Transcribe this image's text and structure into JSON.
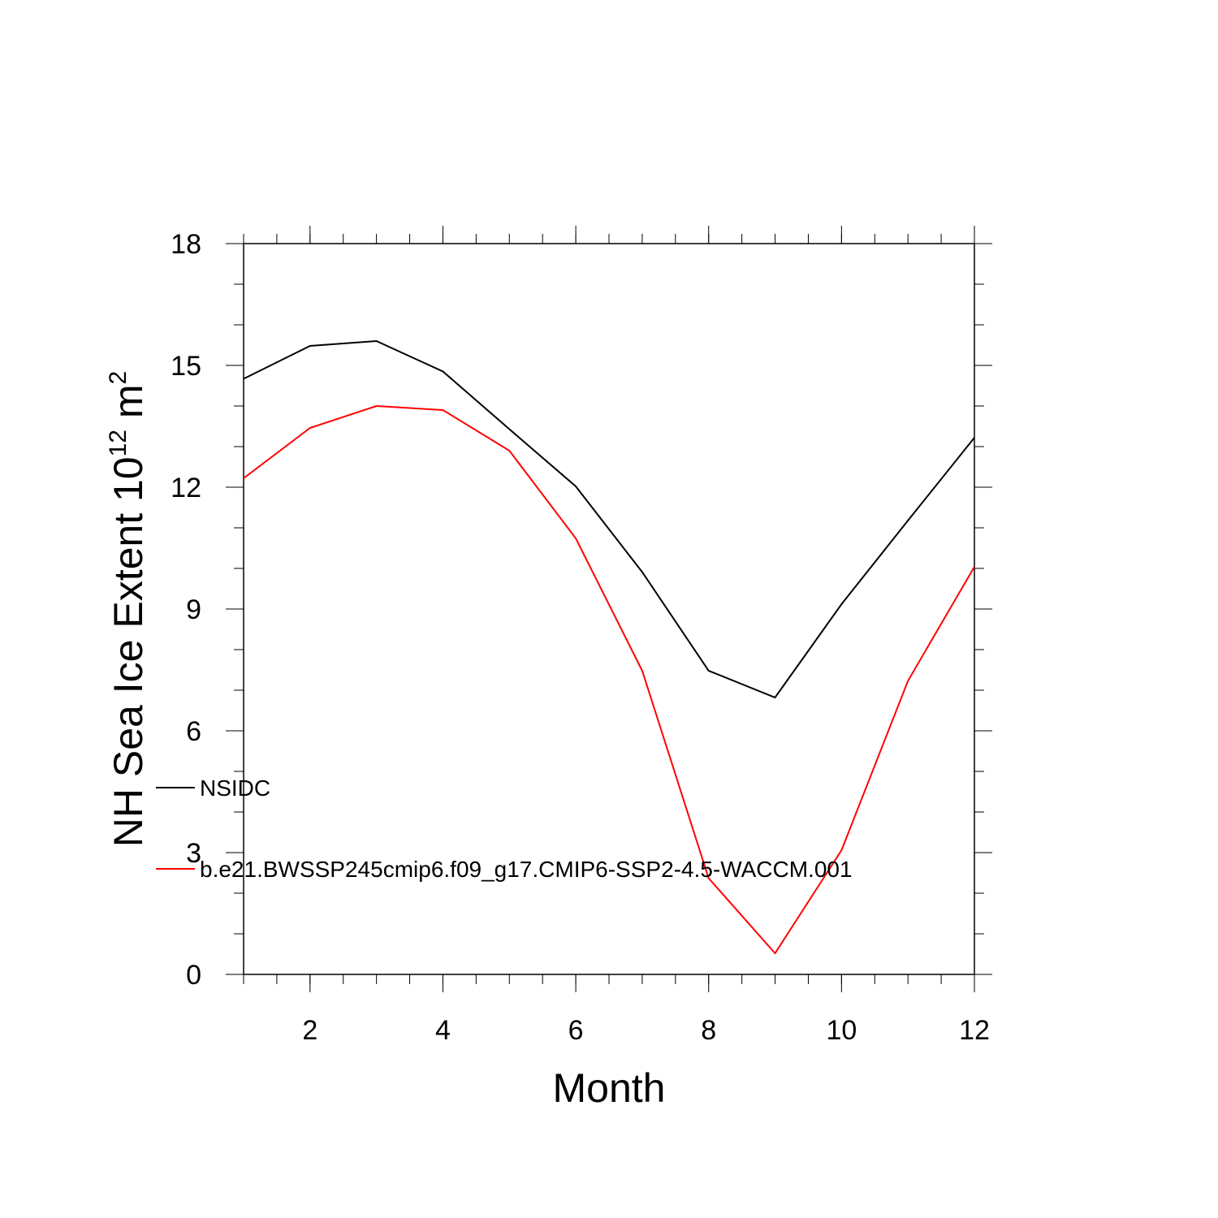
{
  "chart_data": {
    "type": "line",
    "title": "",
    "xlabel": "Month",
    "ylabel": "NH Sea Ice Extent 10",
    "ylabel_sup": "12",
    "ylabel_unit": " m",
    "ylabel_unit_sup": "2",
    "xlim": [
      1,
      12
    ],
    "ylim": [
      0,
      18
    ],
    "x_major_ticks": [
      2,
      4,
      6,
      8,
      10,
      12
    ],
    "y_major_ticks": [
      0,
      3,
      6,
      9,
      12,
      15,
      18
    ],
    "x": [
      1,
      2,
      3,
      4,
      5,
      6,
      7,
      8,
      9,
      10,
      11,
      12
    ],
    "series": [
      {
        "name": "NSIDC",
        "color": "#000000",
        "values": [
          14.67,
          15.48,
          15.6,
          14.85,
          13.43,
          12.02,
          9.91,
          7.48,
          6.82,
          9.12,
          11.18,
          13.22
        ]
      },
      {
        "name": "b.e21.BWSSP245cmip6.f09_g17.CMIP6-SSP2-4.5-WACCM.001",
        "color": "#ff0000",
        "values": [
          12.22,
          13.46,
          14.0,
          13.9,
          12.9,
          10.74,
          7.48,
          2.37,
          0.52,
          3.06,
          7.23,
          10.04
        ]
      }
    ],
    "grid": false,
    "legend_position": "lower-left"
  }
}
